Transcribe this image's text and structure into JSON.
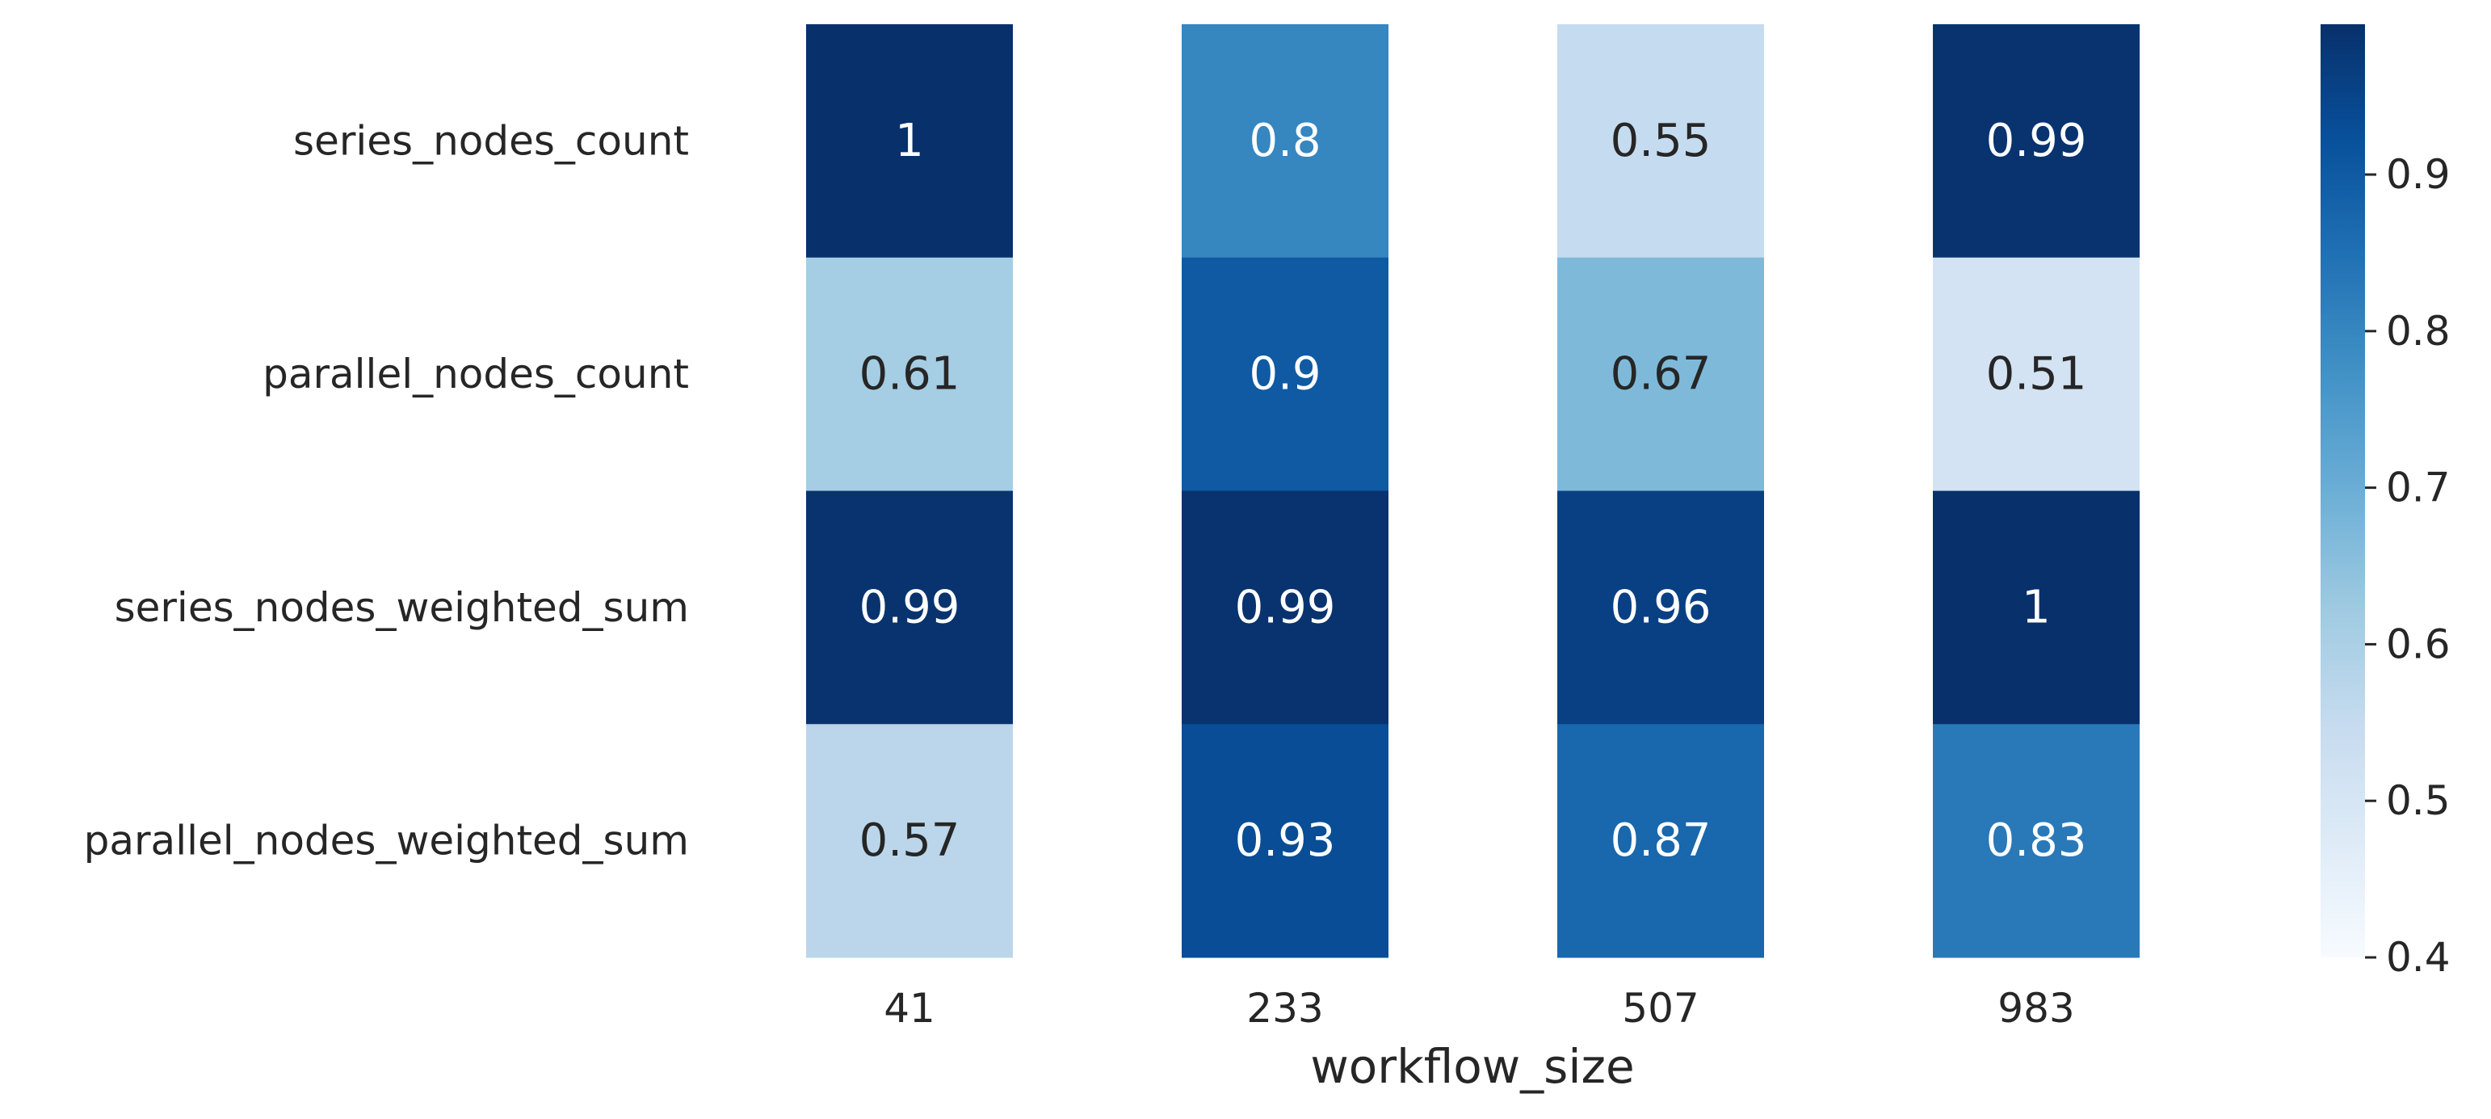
{
  "chart_data": {
    "type": "heatmap",
    "title": "",
    "xlabel": "workflow_size",
    "ylabel": "",
    "x_categories": [
      "41",
      "233",
      "507",
      "983"
    ],
    "y_categories": [
      "series_nodes_count",
      "parallel_nodes_count",
      "series_nodes_weighted_sum",
      "parallel_nodes_weighted_sum"
    ],
    "values": [
      [
        1,
        0.8,
        0.55,
        0.99
      ],
      [
        0.61,
        0.9,
        0.67,
        0.51
      ],
      [
        0.99,
        0.99,
        0.96,
        1
      ],
      [
        0.57,
        0.93,
        0.87,
        0.83
      ]
    ],
    "annotations": [
      [
        "1",
        "0.8",
        "0.55",
        "0.99"
      ],
      [
        "0.61",
        "0.9",
        "0.67",
        "0.51"
      ],
      [
        "0.99",
        "0.99",
        "0.96",
        "1"
      ],
      [
        "0.57",
        "0.93",
        "0.87",
        "0.83"
      ]
    ],
    "colormap": "Blues",
    "colorbar": {
      "vmin": 0.4,
      "vmax": 0.996,
      "ticks": [
        0.4,
        0.5,
        0.6,
        0.7,
        0.8,
        0.9
      ],
      "tick_labels": [
        "0.4",
        "0.5",
        "0.6",
        "0.7",
        "0.8",
        "0.9"
      ]
    },
    "grid": false,
    "legend": "colorbar-right"
  }
}
